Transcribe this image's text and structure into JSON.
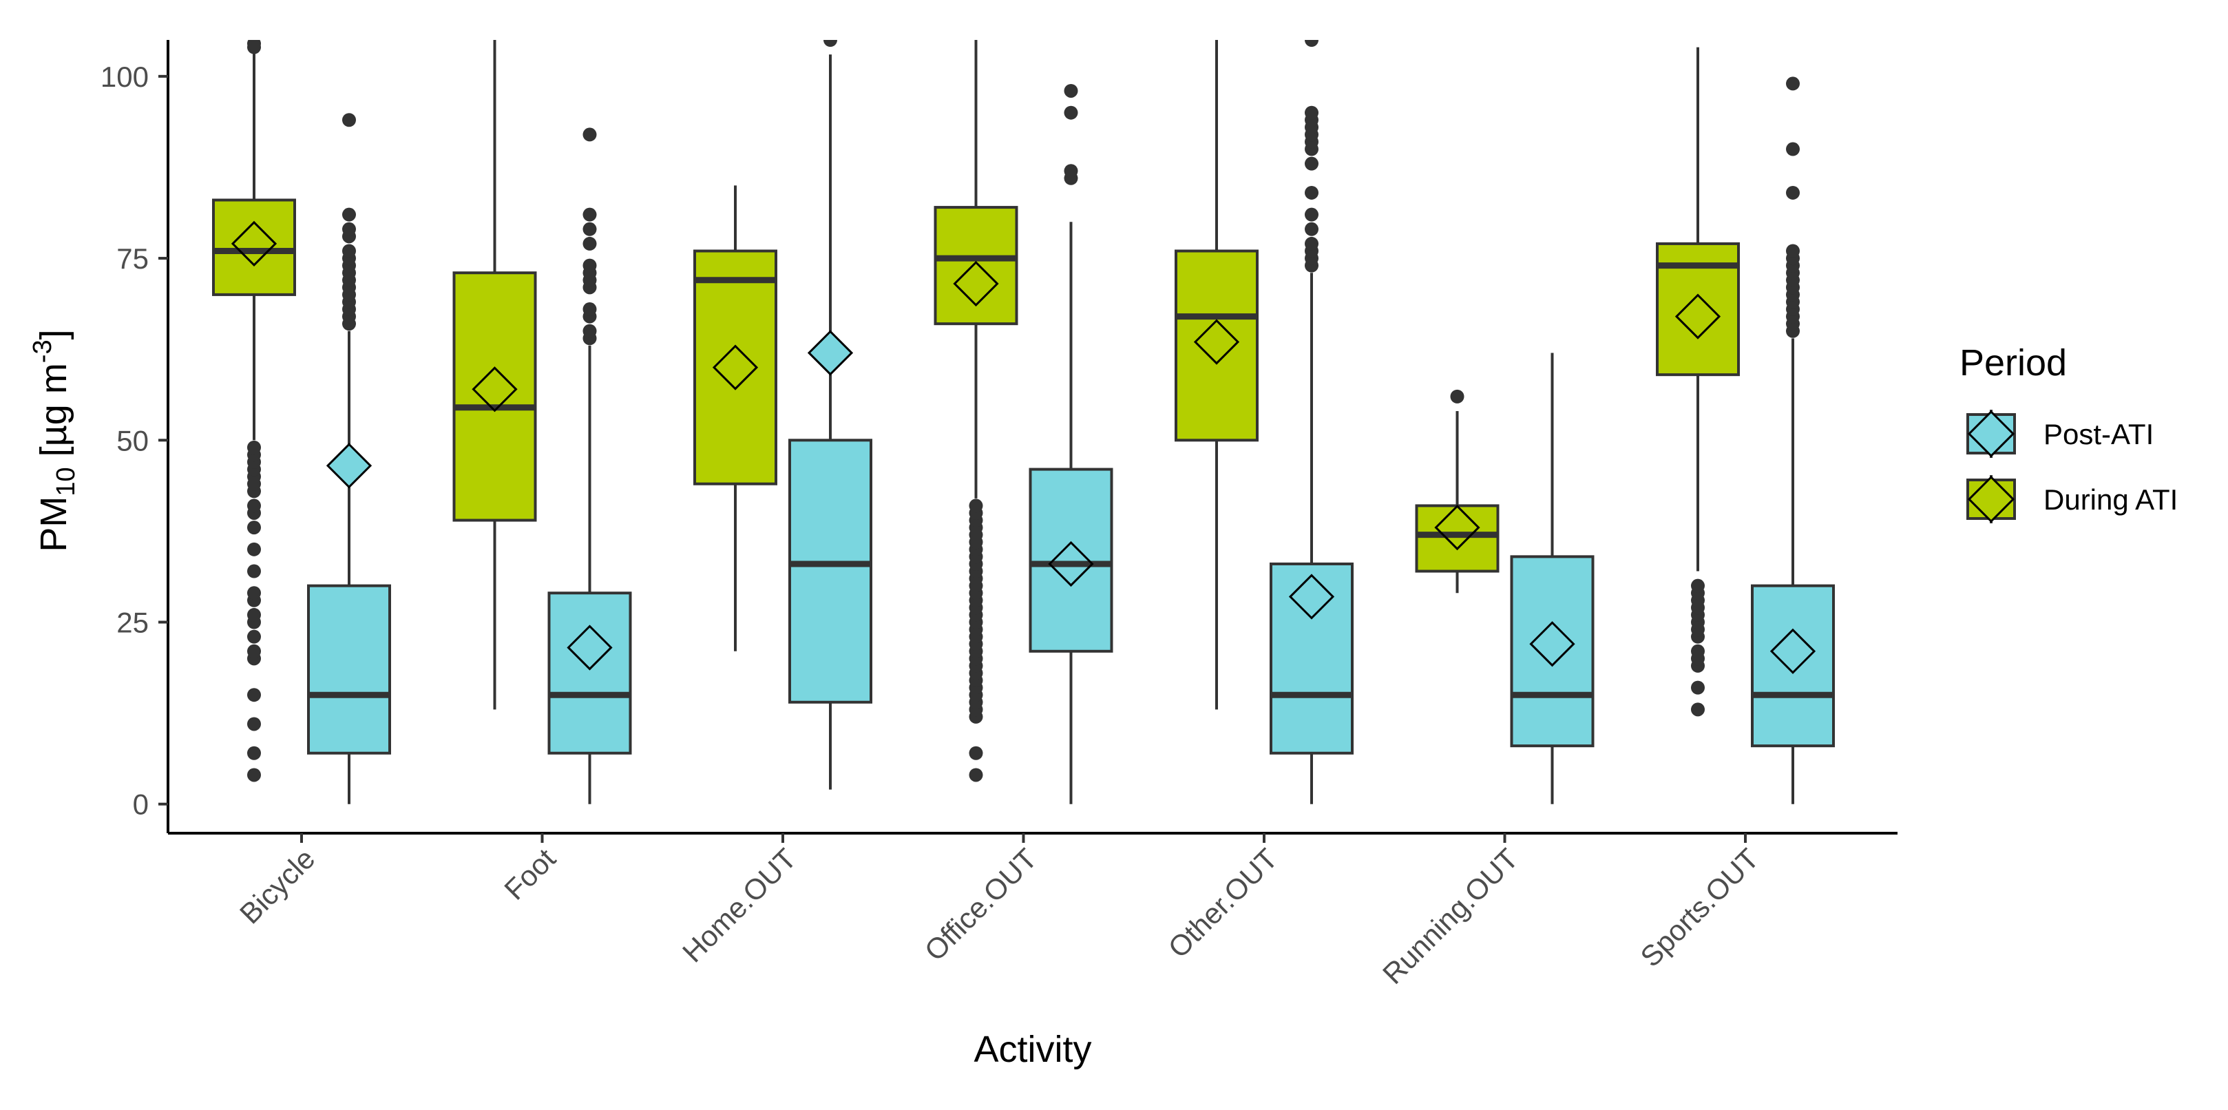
{
  "chart_data": {
    "type": "boxplot",
    "xlabel": "Activity",
    "ylabel": {
      "base": "PM",
      "sub": "10",
      "unit_prefix": " [µg m",
      "unit_sup": "-3",
      "unit_suffix": "]"
    },
    "ylim": [
      -4,
      105
    ],
    "yticks": [
      0,
      25,
      50,
      75,
      100
    ],
    "categories": [
      "Bicycle",
      "Foot",
      "Home.OUT",
      "Office.OUT",
      "Other.OUT",
      "Running.OUT",
      "Sports.OUT"
    ],
    "legend": {
      "title": "Period",
      "position": "right",
      "entries": [
        {
          "key": "post",
          "label": "Post-ATI"
        },
        {
          "key": "during",
          "label": "During ATI"
        }
      ]
    },
    "colors": {
      "during": "#b3cf00",
      "post": "#7ad6df",
      "stroke": "#333333",
      "axis": "#000000"
    },
    "series": [
      {
        "name": "During ATI",
        "key": "during",
        "boxes": [
          {
            "category": "Bicycle",
            "lower_whisker": 50,
            "q1": 70,
            "median": 76,
            "q3": 83,
            "upper_whisker": 104,
            "mean": 77,
            "outliers": [
              4,
              7,
              11,
              15,
              20,
              21,
              23,
              25,
              26,
              28,
              29,
              32,
              35,
              38,
              40,
              41,
              43,
              44,
              45,
              46,
              47,
              48,
              49,
              104,
              104.5
            ]
          },
          {
            "category": "Foot",
            "lower_whisker": 13,
            "q1": 39,
            "median": 54.5,
            "q3": 73,
            "upper_whisker": 105,
            "mean": 57,
            "outliers": []
          },
          {
            "category": "Home.OUT",
            "lower_whisker": 21,
            "q1": 44,
            "median": 72,
            "q3": 76,
            "upper_whisker": 85,
            "mean": 60,
            "outliers": []
          },
          {
            "category": "Office.OUT",
            "lower_whisker": 42,
            "q1": 66,
            "median": 75,
            "q3": 82,
            "upper_whisker": 105,
            "mean": 71.5,
            "outliers": [
              4,
              7,
              12,
              13,
              14,
              15,
              16,
              17,
              18,
              19,
              20,
              21,
              22,
              23,
              24,
              25,
              26,
              27,
              28,
              29,
              30,
              31,
              32,
              33,
              34,
              35,
              36,
              37,
              38,
              39,
              40,
              41
            ]
          },
          {
            "category": "Other.OUT",
            "lower_whisker": 13,
            "q1": 50,
            "median": 67,
            "q3": 76,
            "upper_whisker": 105,
            "mean": 63.5,
            "outliers": []
          },
          {
            "category": "Running.OUT",
            "lower_whisker": 29,
            "q1": 32,
            "median": 37,
            "q3": 41,
            "upper_whisker": 54,
            "mean": 38,
            "outliers": [
              56
            ]
          },
          {
            "category": "Sports.OUT",
            "lower_whisker": 32,
            "q1": 59,
            "median": 74,
            "q3": 77,
            "upper_whisker": 104,
            "mean": 67,
            "outliers": [
              13,
              16,
              19,
              20,
              21,
              23,
              24,
              25,
              26,
              27,
              28,
              29,
              30
            ]
          }
        ]
      },
      {
        "name": "Post-ATI",
        "key": "post",
        "boxes": [
          {
            "category": "Bicycle",
            "lower_whisker": 0,
            "q1": 7,
            "median": 15,
            "q3": 30,
            "upper_whisker": 65,
            "mean": 46.5,
            "outliers": [
              66,
              67,
              68,
              69,
              70,
              71,
              72,
              73,
              74,
              75,
              76,
              78,
              79,
              81,
              94
            ]
          },
          {
            "category": "Foot",
            "lower_whisker": 0,
            "q1": 7,
            "median": 15,
            "q3": 29,
            "upper_whisker": 63,
            "mean": 21.5,
            "outliers": [
              64,
              65,
              67,
              68,
              71,
              72,
              73,
              74,
              77,
              79,
              81,
              92
            ]
          },
          {
            "category": "Home.OUT",
            "lower_whisker": 2,
            "q1": 14,
            "median": 33,
            "q3": 50,
            "upper_whisker": 103,
            "mean": 62,
            "outliers": [
              105
            ]
          },
          {
            "category": "Office.OUT",
            "lower_whisker": 0,
            "q1": 21,
            "median": 33,
            "q3": 46,
            "upper_whisker": 80,
            "mean": 33,
            "outliers": [
              86,
              87,
              95,
              98
            ]
          },
          {
            "category": "Other.OUT",
            "lower_whisker": 0,
            "q1": 7,
            "median": 15,
            "q3": 33,
            "upper_whisker": 73,
            "mean": 28.5,
            "outliers": [
              74,
              75,
              76,
              77,
              79,
              81,
              84,
              88,
              90,
              91,
              92,
              93,
              94,
              95,
              105
            ]
          },
          {
            "category": "Running.OUT",
            "lower_whisker": 0,
            "q1": 8,
            "median": 15,
            "q3": 34,
            "upper_whisker": 62,
            "mean": 22,
            "outliers": []
          },
          {
            "category": "Sports.OUT",
            "lower_whisker": 0,
            "q1": 8,
            "median": 15,
            "q3": 30,
            "upper_whisker": 64,
            "mean": 21,
            "outliers": [
              65,
              66,
              67,
              68,
              69,
              70,
              71,
              72,
              73,
              74,
              75,
              76,
              84,
              90,
              99
            ]
          }
        ]
      }
    ]
  }
}
